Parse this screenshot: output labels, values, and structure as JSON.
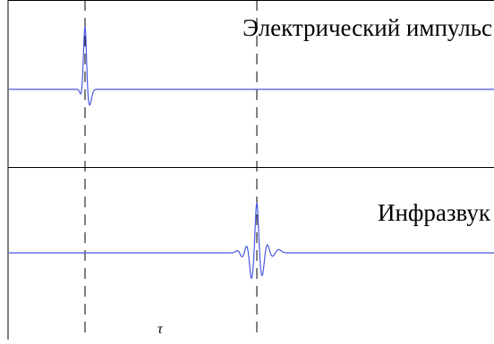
{
  "panels": {
    "top_title": "Электрический импульс",
    "bottom_title": "Инфразвук"
  },
  "delay_symbol": "τ",
  "colors": {
    "signal": "#4a58e0",
    "axes": "#000000",
    "marker": "#000000",
    "background": "#ffffff"
  }
}
